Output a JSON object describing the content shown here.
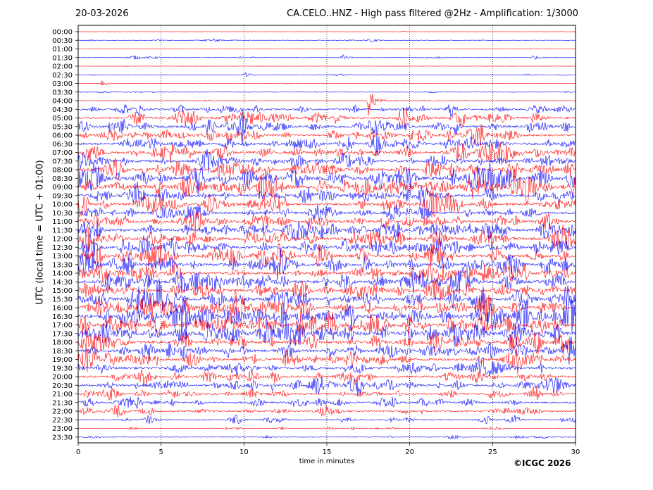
{
  "header": {
    "date": "20-03-2026",
    "title": "CA.CELO..HNZ - High pass filtered @2Hz - Amplification: 1/3000"
  },
  "footer": {
    "copyright": "©ICGC 2026"
  },
  "chart_data": {
    "type": "line",
    "title": "CA.CELO..HNZ - High pass filtered @2Hz - Amplification: 1/3000",
    "xlabel": "time in minutes",
    "ylabel": "UTC (local time = UTC + 01:00)",
    "xlim": [
      0,
      30
    ],
    "x_ticks": [
      "0",
      "5",
      "10",
      "15",
      "20",
      "25",
      "30"
    ],
    "vertical_gridlines_at_minutes": [
      5,
      10,
      15,
      20,
      25
    ],
    "grid": "vertical dotted",
    "trace_colors": [
      "#ff0000",
      "#0000ff"
    ],
    "row_labels": [
      "00:00",
      "00:30",
      "01:00",
      "01:30",
      "02:00",
      "02:30",
      "03:00",
      "03:30",
      "04:00",
      "04:30",
      "05:00",
      "05:30",
      "06:00",
      "06:30",
      "07:00",
      "07:30",
      "08:00",
      "08:30",
      "09:00",
      "09:30",
      "10:00",
      "10:30",
      "11:00",
      "11:30",
      "12:00",
      "12:30",
      "13:00",
      "13:30",
      "14:00",
      "14:30",
      "15:00",
      "15:30",
      "16:00",
      "16:30",
      "17:00",
      "17:30",
      "18:00",
      "18:30",
      "19:00",
      "19:30",
      "20:00",
      "20:30",
      "21:00",
      "21:30",
      "22:00",
      "22:30",
      "23:00",
      "23:30"
    ],
    "row_noise_level": [
      0.2,
      0.6,
      0.2,
      0.6,
      0.2,
      0.5,
      0.3,
      0.5,
      0.4,
      2.2,
      2.6,
      2.6,
      2.4,
      2.6,
      2.8,
      2.8,
      3.2,
      3.8,
      4.0,
      3.0,
      3.0,
      2.6,
      3.0,
      3.2,
      3.2,
      3.2,
      3.4,
      3.4,
      3.2,
      3.4,
      3.2,
      3.4,
      3.6,
      4.2,
      3.8,
      4.0,
      3.2,
      3.0,
      3.0,
      2.6,
      2.4,
      2.6,
      2.0,
      2.0,
      1.8,
      1.4,
      0.8,
      0.8
    ],
    "events": [
      {
        "row": 1,
        "minute": 8.2,
        "amplitude": 3
      },
      {
        "row": 3,
        "minute": 15.9,
        "amplitude": 5
      },
      {
        "row": 3,
        "minute": 27.4,
        "amplitude": 4
      },
      {
        "row": 5,
        "minute": 10.0,
        "amplitude": 5
      },
      {
        "row": 6,
        "minute": 1.4,
        "amplitude": 5
      },
      {
        "row": 8,
        "minute": 17.5,
        "amplitude": 24
      },
      {
        "row": 10,
        "minute": 15.5,
        "amplitude": 8
      },
      {
        "row": 11,
        "minute": 7.8,
        "amplitude": 10
      },
      {
        "row": 11,
        "minute": 9.9,
        "amplitude": 12
      },
      {
        "row": 12,
        "minute": 18.4,
        "amplitude": 9
      },
      {
        "row": 12,
        "minute": 25.8,
        "amplitude": 8
      },
      {
        "row": 14,
        "minute": 14.3,
        "amplitude": 11
      },
      {
        "row": 14,
        "minute": 15.6,
        "amplitude": 10
      },
      {
        "row": 14,
        "minute": 5.0,
        "amplitude": 6
      },
      {
        "row": 15,
        "minute": 16.3,
        "amplitude": 7
      },
      {
        "row": 16,
        "minute": 22.6,
        "amplitude": 10
      },
      {
        "row": 18,
        "minute": 11.2,
        "amplitude": 8
      },
      {
        "row": 19,
        "minute": 24.6,
        "amplitude": 8
      },
      {
        "row": 21,
        "minute": 20.5,
        "amplitude": 7
      },
      {
        "row": 22,
        "minute": 20.9,
        "amplitude": 9
      },
      {
        "row": 24,
        "minute": 12.3,
        "amplitude": 8
      },
      {
        "row": 24,
        "minute": 5.8,
        "amplitude": 6
      },
      {
        "row": 29,
        "minute": 20.2,
        "amplitude": 11
      },
      {
        "row": 30,
        "minute": 23.3,
        "amplitude": 8
      },
      {
        "row": 31,
        "minute": 27.0,
        "amplitude": 14
      },
      {
        "row": 32,
        "minute": 24.2,
        "amplitude": 14
      },
      {
        "row": 33,
        "minute": 22.0,
        "amplitude": 9
      },
      {
        "row": 33,
        "minute": 24.3,
        "amplitude": 10
      },
      {
        "row": 37,
        "minute": 24.8,
        "amplitude": 8
      },
      {
        "row": 38,
        "minute": 26.5,
        "amplitude": 9
      },
      {
        "row": 41,
        "minute": 16.8,
        "amplitude": 6
      }
    ]
  }
}
